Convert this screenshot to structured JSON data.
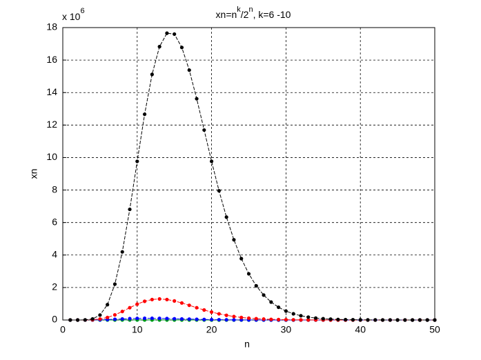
{
  "chart_data": {
    "type": "line",
    "title": {
      "parts": [
        "xn=n",
        "k",
        "/2",
        "n",
        ", k=6 -10"
      ]
    },
    "y_multiplier": {
      "base": "x 10",
      "exponent": "6"
    },
    "xlabel": "n",
    "ylabel": "xn",
    "x": [
      1,
      2,
      3,
      4,
      5,
      6,
      7,
      8,
      9,
      10,
      11,
      12,
      13,
      14,
      15,
      16,
      17,
      18,
      19,
      20,
      21,
      22,
      23,
      24,
      25,
      26,
      27,
      28,
      29,
      30,
      31,
      32,
      33,
      34,
      35,
      36,
      37,
      38,
      39,
      40,
      41,
      42,
      43,
      44,
      45,
      46,
      47,
      48,
      49,
      50
    ],
    "xlim": [
      0,
      50
    ],
    "xticks": [
      0,
      10,
      20,
      30,
      40,
      50
    ],
    "ylim": [
      0,
      18
    ],
    "yticks": [
      0,
      2,
      4,
      6,
      8,
      10,
      12,
      14,
      16,
      18
    ],
    "grid": true,
    "series": [
      {
        "color": "#00bfbf",
        "values": [
          0,
          0,
          0,
          0,
          0,
          0.001,
          0.001,
          0.001,
          0.001,
          0.001,
          0.001,
          0.001,
          0.001,
          0,
          0,
          0,
          0,
          0,
          0,
          0,
          0,
          0,
          0,
          0,
          0,
          0,
          0,
          0,
          0,
          0,
          0,
          0,
          0,
          0,
          0,
          0,
          0,
          0,
          0,
          0,
          0,
          0,
          0,
          0,
          0,
          0,
          0,
          0,
          0,
          0
        ]
      },
      {
        "color": "#00a000",
        "values": [
          0,
          0,
          0,
          0.001,
          0.002,
          0.004,
          0.006,
          0.008,
          0.009,
          0.01,
          0.01,
          0.009,
          0.008,
          0.006,
          0.005,
          0.004,
          0.003,
          0.002,
          0.002,
          0.001,
          0.001,
          0.001,
          0,
          0,
          0,
          0,
          0,
          0,
          0,
          0,
          0,
          0,
          0,
          0,
          0,
          0,
          0,
          0,
          0,
          0,
          0,
          0,
          0,
          0,
          0,
          0,
          0,
          0,
          0,
          0
        ]
      },
      {
        "color": "#0000ff",
        "values": [
          0,
          0,
          0.001,
          0.004,
          0.012,
          0.026,
          0.045,
          0.066,
          0.084,
          0.098,
          0.105,
          0.105,
          0.1,
          0.09,
          0.078,
          0.066,
          0.053,
          0.042,
          0.032,
          0.024,
          0.018,
          0.013,
          0.009,
          0.007,
          0.005,
          0.003,
          0.002,
          0.001,
          0.001,
          0.001,
          0,
          0,
          0,
          0,
          0,
          0,
          0,
          0,
          0,
          0,
          0,
          0,
          0,
          0,
          0,
          0,
          0,
          0,
          0,
          0
        ]
      },
      {
        "color": "#ff0000",
        "values": [
          0,
          0,
          0.002,
          0.016,
          0.061,
          0.157,
          0.315,
          0.524,
          0.757,
          0.977,
          1.151,
          1.26,
          1.294,
          1.261,
          1.173,
          1.049,
          0.905,
          0.757,
          0.615,
          0.488,
          0.379,
          0.288,
          0.215,
          0.157,
          0.114,
          0.081,
          0.057,
          0.039,
          0.027,
          0.018,
          0.012,
          0.008,
          0.005,
          0.004,
          0.002,
          0.001,
          0.001,
          0.001,
          0,
          0,
          0,
          0,
          0,
          0,
          0,
          0,
          0,
          0,
          0,
          0
        ]
      },
      {
        "color": "#000000",
        "values": [
          0,
          0,
          0.007,
          0.066,
          0.305,
          0.945,
          2.207,
          4.194,
          6.81,
          9.766,
          12.665,
          15.117,
          16.828,
          17.655,
          17.598,
          16.777,
          15.381,
          13.62,
          11.694,
          9.766,
          7.954,
          6.332,
          4.938,
          3.779,
          2.842,
          2.104,
          1.534,
          1.103,
          0.784,
          0.55,
          0.382,
          0.262,
          0.178,
          0.12,
          0.08,
          0.053,
          0.035,
          0.023,
          0.015,
          0.01,
          0.006,
          0.004,
          0.002,
          0.002,
          0.001,
          0.001,
          0,
          0,
          0,
          0
        ]
      }
    ]
  }
}
